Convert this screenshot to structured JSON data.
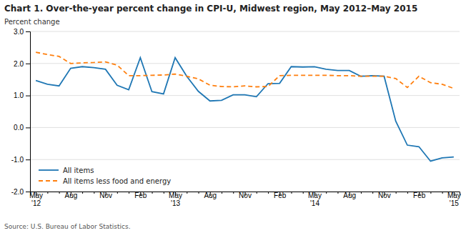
{
  "chart_data": {
    "type": "line",
    "title": "Chart 1. Over-the-year percent change in CPI-U, Midwest region, May 2012–May 2015",
    "ylabel": "Percent change",
    "source": "Source: U.S. Bureau of Labor Statistics.",
    "categories": [
      "May\n'12",
      null,
      null,
      "Aug",
      null,
      null,
      "Nov",
      null,
      null,
      "Feb",
      null,
      null,
      "May\n'13",
      null,
      null,
      "Aug",
      null,
      null,
      "Nov",
      null,
      null,
      "Feb",
      null,
      null,
      "May\n'14",
      null,
      null,
      "Aug",
      null,
      null,
      "Nov",
      null,
      null,
      "Feb",
      null,
      null,
      "May\n'15"
    ],
    "series": [
      {
        "name": "All items",
        "line_style": "solid",
        "values": [
          1.47,
          1.35,
          1.3,
          1.85,
          1.9,
          1.87,
          1.82,
          1.32,
          1.18,
          2.18,
          1.12,
          1.05,
          2.18,
          1.6,
          1.13,
          0.83,
          0.85,
          1.02,
          1.02,
          0.96,
          1.37,
          1.38,
          1.9,
          1.89,
          1.9,
          1.82,
          1.78,
          1.78,
          1.6,
          1.62,
          1.6,
          0.2,
          -0.55,
          -0.6,
          -1.05,
          -0.95,
          -0.92
        ]
      },
      {
        "name": "All items less food and energy",
        "line_style": "dashed",
        "values": [
          2.35,
          2.28,
          2.22,
          2.0,
          2.02,
          2.03,
          2.05,
          1.95,
          1.62,
          1.62,
          1.63,
          1.64,
          1.67,
          1.6,
          1.52,
          1.32,
          1.28,
          1.27,
          1.3,
          1.27,
          1.28,
          1.62,
          1.63,
          1.63,
          1.63,
          1.63,
          1.62,
          1.62,
          1.6,
          1.6,
          1.6,
          1.53,
          1.25,
          1.6,
          1.4,
          1.35,
          1.22
        ]
      }
    ],
    "ylim": [
      -2.0,
      3.0
    ],
    "yticks": [
      {
        "value": -2.0,
        "label": "-2.0"
      },
      {
        "value": -1.0,
        "label": "-1.0"
      },
      {
        "value": 0.0,
        "label": "0.0"
      },
      {
        "value": 1.0,
        "label": "1.0"
      },
      {
        "value": 2.0,
        "label": "2.0"
      },
      {
        "value": 3.0,
        "label": "3.0"
      }
    ],
    "grid": true,
    "legend": "lower left"
  }
}
